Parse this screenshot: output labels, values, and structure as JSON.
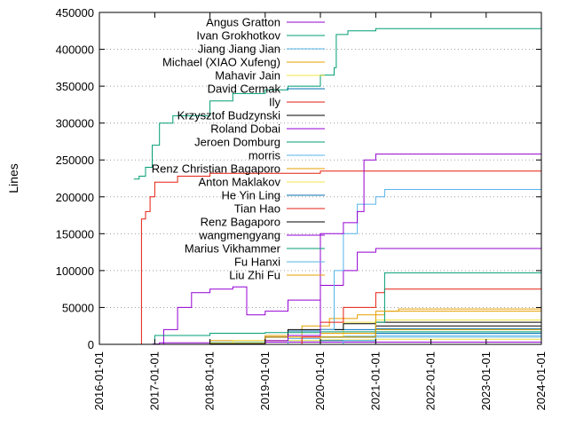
{
  "chart_data": {
    "type": "line",
    "title": "",
    "xlabel": "",
    "ylabel": "Lines",
    "ylim": [
      0,
      450000
    ],
    "xlim": [
      "2016-01-01",
      "2024-01-01"
    ],
    "y_ticks": [
      0,
      50000,
      100000,
      150000,
      200000,
      250000,
      300000,
      350000,
      400000,
      450000
    ],
    "x_ticks": [
      "2016-01-01",
      "2017-01-01",
      "2018-01-01",
      "2019-01-01",
      "2020-01-01",
      "2021-01-01",
      "2022-01-01",
      "2023-01-01",
      "2024-01-01"
    ],
    "grid": "horizontal dotted at 50000 steps",
    "legend_position": "top-right",
    "series": [
      {
        "name": "Angus Gratton",
        "color": "#9400d3",
        "points": [
          [
            "2016-12-10",
            0
          ],
          [
            "2016-12-20",
            500
          ],
          [
            "2017-02-01",
            2000
          ],
          [
            "2018-01-01",
            3000
          ],
          [
            "2021-01-01",
            3000
          ],
          [
            "2024-01-01",
            3000
          ]
        ]
      },
      {
        "name": "Ivan Grokhotkov",
        "color": "#009e73",
        "points": [
          [
            "2016-08-15",
            224000
          ],
          [
            "2016-09-20",
            228000
          ],
          [
            "2016-11-01",
            240000
          ],
          [
            "2016-12-15",
            270000
          ],
          [
            "2017-02-01",
            300000
          ],
          [
            "2017-05-01",
            310000
          ],
          [
            "2018-01-01",
            330000
          ],
          [
            "2018-06-01",
            340000
          ],
          [
            "2019-01-01",
            345000
          ],
          [
            "2019-06-01",
            350000
          ],
          [
            "2020-01-01",
            365000
          ],
          [
            "2020-04-01",
            375000
          ],
          [
            "2020-04-15",
            420000
          ],
          [
            "2020-07-01",
            425000
          ],
          [
            "2021-01-01",
            428000
          ],
          [
            "2024-01-01",
            430000
          ]
        ]
      },
      {
        "name": "Jiang Jiang Jian",
        "color": "#56b4e9",
        "points": [
          [
            "2017-03-01",
            0
          ],
          [
            "2018-01-01",
            3000
          ],
          [
            "2019-01-01",
            5000
          ],
          [
            "2019-06-01",
            8000
          ],
          [
            "2020-01-01",
            10000
          ],
          [
            "2020-06-01",
            11000
          ],
          [
            "2021-01-01",
            12000
          ],
          [
            "2024-01-01",
            12000
          ]
        ]
      },
      {
        "name": "Michael (XIAO Xufeng)",
        "color": "#e69f00",
        "points": [
          [
            "2017-01-01",
            0
          ],
          [
            "2018-01-01",
            5000
          ],
          [
            "2019-01-01",
            12000
          ],
          [
            "2019-09-01",
            25000
          ],
          [
            "2020-03-01",
            35000
          ],
          [
            "2020-09-01",
            40000
          ],
          [
            "2021-03-01",
            45000
          ],
          [
            "2021-06-01",
            48000
          ],
          [
            "2024-01-01",
            48000
          ]
        ]
      },
      {
        "name": "Mahavir Jain",
        "color": "#f0e442",
        "points": [
          [
            "2017-06-01",
            0
          ],
          [
            "2018-06-01",
            5000
          ],
          [
            "2019-06-01",
            10000
          ],
          [
            "2020-06-01",
            30000
          ],
          [
            "2021-01-01",
            33000
          ],
          [
            "2024-01-01",
            34000
          ]
        ]
      },
      {
        "name": "David Cermak",
        "color": "#0072b2",
        "points": [
          [
            "2018-06-01",
            0
          ],
          [
            "2019-01-01",
            10000
          ],
          [
            "2019-06-01",
            18000
          ],
          [
            "2020-01-01",
            20000
          ],
          [
            "2021-01-01",
            21000
          ],
          [
            "2024-01-01",
            22000
          ]
        ]
      },
      {
        "name": "Ily",
        "color": "#e51e10",
        "points": [
          [
            "2016-10-01",
            0
          ],
          [
            "2016-10-05",
            170000
          ],
          [
            "2016-11-01",
            180000
          ],
          [
            "2016-12-01",
            200000
          ],
          [
            "2017-01-01",
            220000
          ],
          [
            "2017-06-01",
            228000
          ],
          [
            "2018-01-01",
            232000
          ],
          [
            "2020-01-01",
            235000
          ],
          [
            "2024-01-01",
            235000
          ]
        ]
      },
      {
        "name": "Krzysztof Budzynski",
        "color": "#000000",
        "points": [
          [
            "2017-01-01",
            0
          ],
          [
            "2018-01-01",
            1000
          ],
          [
            "2019-01-01",
            10000
          ],
          [
            "2019-06-01",
            20000
          ],
          [
            "2020-06-01",
            28000
          ],
          [
            "2021-01-01",
            30000
          ],
          [
            "2024-01-01",
            30000
          ]
        ]
      },
      {
        "name": "Roland Dobai",
        "color": "#9400d3",
        "points": [
          [
            "2017-01-01",
            0
          ],
          [
            "2017-03-01",
            20000
          ],
          [
            "2017-06-01",
            50000
          ],
          [
            "2017-09-01",
            70000
          ],
          [
            "2018-01-01",
            75000
          ],
          [
            "2018-06-01",
            78000
          ],
          [
            "2018-09-01",
            40000
          ],
          [
            "2019-01-01",
            45000
          ],
          [
            "2019-06-01",
            60000
          ],
          [
            "2020-01-01",
            80000
          ],
          [
            "2020-06-01",
            100000
          ],
          [
            "2020-09-01",
            125000
          ],
          [
            "2021-01-01",
            130000
          ],
          [
            "2024-01-01",
            132000
          ]
        ]
      },
      {
        "name": "Jeroen Domburg",
        "color": "#009e73",
        "points": [
          [
            "2016-08-15",
            0
          ],
          [
            "2017-01-01",
            12000
          ],
          [
            "2018-01-01",
            15000
          ],
          [
            "2019-01-01",
            16000
          ],
          [
            "2020-01-01",
            17000
          ],
          [
            "2021-01-01",
            17000
          ],
          [
            "2024-01-01",
            17000
          ]
        ]
      },
      {
        "name": "morris",
        "color": "#56b4e9",
        "points": [
          [
            "2018-01-01",
            0
          ],
          [
            "2019-06-01",
            5000
          ],
          [
            "2020-01-01",
            20000
          ],
          [
            "2020-04-01",
            100000
          ],
          [
            "2020-06-01",
            150000
          ],
          [
            "2020-09-01",
            190000
          ],
          [
            "2021-01-01",
            200000
          ],
          [
            "2021-03-01",
            210000
          ],
          [
            "2024-01-01",
            210000
          ]
        ]
      },
      {
        "name": "Renz Christian Bagaporo",
        "color": "#e69f00",
        "points": [
          [
            "2018-01-01",
            0
          ],
          [
            "2019-01-01",
            10000
          ],
          [
            "2020-01-01",
            15000
          ],
          [
            "2021-01-01",
            20000
          ],
          [
            "2024-01-01",
            20000
          ]
        ]
      },
      {
        "name": "Anton Maklakov",
        "color": "#f0e442",
        "points": [
          [
            "2017-01-01",
            0
          ],
          [
            "2018-01-01",
            2000
          ],
          [
            "2019-01-01",
            5000
          ],
          [
            "2020-01-01",
            6000
          ],
          [
            "2021-01-01",
            7000
          ],
          [
            "2024-01-01",
            7000
          ]
        ]
      },
      {
        "name": "He Yin Ling",
        "color": "#0072b2",
        "points": [
          [
            "2019-06-01",
            0
          ],
          [
            "2020-01-01",
            5000
          ],
          [
            "2021-01-01",
            15000
          ],
          [
            "2024-01-01",
            18000
          ]
        ]
      },
      {
        "name": "Tian Hao",
        "color": "#e51e10",
        "points": [
          [
            "2019-01-01",
            0
          ],
          [
            "2019-09-01",
            10000
          ],
          [
            "2020-01-01",
            30000
          ],
          [
            "2020-06-01",
            50000
          ],
          [
            "2021-01-01",
            70000
          ],
          [
            "2021-03-01",
            75000
          ],
          [
            "2024-01-01",
            75000
          ]
        ]
      },
      {
        "name": "Renz Bagaporo",
        "color": "#000000",
        "points": [
          [
            "2019-01-01",
            0
          ],
          [
            "2020-01-01",
            10000
          ],
          [
            "2021-01-01",
            25000
          ],
          [
            "2024-01-01",
            25000
          ]
        ]
      },
      {
        "name": "wangmengyang",
        "color": "#9400d3",
        "points": [
          [
            "2018-09-01",
            0
          ],
          [
            "2019-01-01",
            5000
          ],
          [
            "2019-06-01",
            12000
          ],
          [
            "2020-01-01",
            150000
          ],
          [
            "2020-06-01",
            165000
          ],
          [
            "2020-09-01",
            180000
          ],
          [
            "2020-10-15",
            250000
          ],
          [
            "2021-01-01",
            258000
          ],
          [
            "2024-01-01",
            260000
          ]
        ]
      },
      {
        "name": "Marius Vikhammer",
        "color": "#009e73",
        "points": [
          [
            "2019-06-01",
            0
          ],
          [
            "2020-01-01",
            10000
          ],
          [
            "2021-01-01",
            30000
          ],
          [
            "2021-03-01",
            97000
          ],
          [
            "2024-01-01",
            98000
          ]
        ]
      },
      {
        "name": "Fu Hanxi",
        "color": "#56b4e9",
        "points": [
          [
            "2020-01-01",
            0
          ],
          [
            "2020-06-01",
            5000
          ],
          [
            "2021-01-01",
            10000
          ],
          [
            "2024-01-01",
            10000
          ]
        ]
      },
      {
        "name": "Liu Zhi Fu",
        "color": "#e69f00",
        "points": [
          [
            "2019-01-01",
            0
          ],
          [
            "2020-01-01",
            10000
          ],
          [
            "2021-01-01",
            45000
          ],
          [
            "2024-01-01",
            48000
          ]
        ]
      }
    ]
  }
}
